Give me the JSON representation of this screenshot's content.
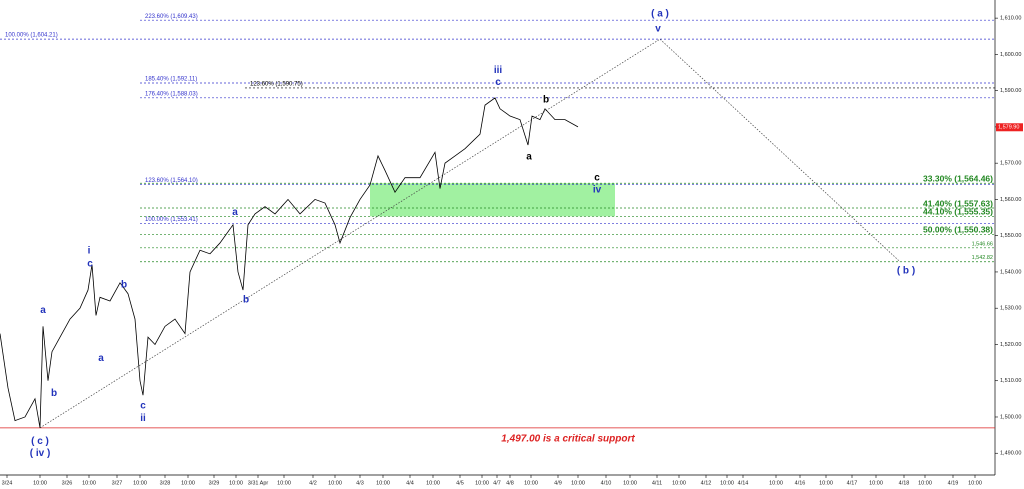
{
  "chart_data": {
    "type": "line",
    "xlim": [
      0,
      995
    ],
    "ylim": [
      1484,
      1615
    ],
    "yticks": [
      {
        "value": 1490,
        "label": "1,490.00"
      },
      {
        "value": 1500,
        "label": "1,500.00"
      },
      {
        "value": 1510,
        "label": "1,510.00"
      },
      {
        "value": 1520,
        "label": "1,520.00"
      },
      {
        "value": 1530,
        "label": "1,530.00"
      },
      {
        "value": 1540,
        "label": "1,540.00"
      },
      {
        "value": 1550,
        "label": "1,550.00"
      },
      {
        "value": 1560,
        "label": "1,560.00"
      },
      {
        "value": 1570,
        "label": "1,570.00"
      },
      {
        "value": 1580,
        "label": "1,580.00"
      },
      {
        "value": 1590,
        "label": "1,590.00"
      },
      {
        "value": 1600,
        "label": "1,600.00"
      },
      {
        "value": 1610,
        "label": "1,610.00"
      }
    ],
    "xticks": [
      {
        "value": 7,
        "label": "3/24"
      },
      {
        "value": 40,
        "label": "10:00"
      },
      {
        "value": 67,
        "label": "3/26"
      },
      {
        "value": 89,
        "label": "10:00"
      },
      {
        "value": 117,
        "label": "3/27"
      },
      {
        "value": 140,
        "label": "10:00"
      },
      {
        "value": 165,
        "label": "3/28"
      },
      {
        "value": 188,
        "label": "10:00"
      },
      {
        "value": 214,
        "label": "3/29"
      },
      {
        "value": 236,
        "label": "10:00"
      },
      {
        "value": 258,
        "label": "3/31 Apr"
      },
      {
        "value": 284,
        "label": "10:00"
      },
      {
        "value": 313,
        "label": "4/2"
      },
      {
        "value": 335,
        "label": "10:00"
      },
      {
        "value": 360,
        "label": "4/3"
      },
      {
        "value": 383,
        "label": "10:00"
      },
      {
        "value": 410,
        "label": "4/4"
      },
      {
        "value": 433,
        "label": "10:00"
      },
      {
        "value": 460,
        "label": "4/5"
      },
      {
        "value": 482,
        "label": "10:00"
      },
      {
        "value": 497,
        "label": "4/7"
      },
      {
        "value": 510,
        "label": "4/8"
      },
      {
        "value": 531,
        "label": "10:00"
      },
      {
        "value": 558,
        "label": "4/9"
      },
      {
        "value": 578,
        "label": "10:00"
      },
      {
        "value": 606,
        "label": "4/10"
      },
      {
        "value": 630,
        "label": "10:00"
      },
      {
        "value": 657,
        "label": "4/11"
      },
      {
        "value": 679,
        "label": "10:00"
      },
      {
        "value": 706,
        "label": "4/12"
      },
      {
        "value": 727,
        "label": "10:00"
      },
      {
        "value": 743,
        "label": "4/14"
      },
      {
        "value": 776,
        "label": "10:00"
      },
      {
        "value": 800,
        "label": "4/16"
      },
      {
        "value": 826,
        "label": "10:00"
      },
      {
        "value": 852,
        "label": "4/17"
      },
      {
        "value": 876,
        "label": "10:00"
      },
      {
        "value": 904,
        "label": "4/18"
      },
      {
        "value": 925,
        "label": "10:00"
      },
      {
        "value": 953,
        "label": "4/19"
      },
      {
        "value": 975,
        "label": "10:00"
      }
    ],
    "series": [
      {
        "name": "Price",
        "color": "#000000",
        "x": [
          0,
          8,
          15,
          25,
          35,
          40,
          43,
          48,
          52,
          60,
          70,
          80,
          88,
          92,
          96,
          100,
          110,
          120,
          128,
          135,
          140,
          143,
          148,
          155,
          165,
          175,
          185,
          190,
          200,
          210,
          220,
          233,
          238,
          243,
          248,
          255,
          265,
          275,
          288,
          300,
          315,
          325,
          335,
          340,
          350,
          360,
          370,
          378,
          385,
          395,
          405,
          420,
          435,
          440,
          445,
          455,
          465,
          480,
          485,
          495,
          500,
          510,
          520,
          528,
          532,
          540,
          545,
          555,
          565,
          578
        ],
        "values": [
          1523,
          1508,
          1499,
          1500,
          1505,
          1497,
          1525,
          1510,
          1518,
          1522,
          1527,
          1530,
          1535,
          1542,
          1528,
          1533,
          1532,
          1537,
          1534,
          1527,
          1510,
          1506,
          1522,
          1520,
          1525,
          1527,
          1523,
          1540,
          1546,
          1545,
          1548,
          1553,
          1540,
          1535,
          1553,
          1556,
          1558,
          1556,
          1560,
          1556,
          1560,
          1559,
          1553,
          1548,
          1555,
          1560,
          1564,
          1572,
          1568,
          1562,
          1566,
          1566,
          1573,
          1563,
          1570,
          1572,
          1574,
          1578,
          1586,
          1588,
          1585,
          1583,
          1582,
          1575,
          1583,
          1582,
          1585,
          1582,
          1582,
          1580
        ]
      }
    ],
    "last_price": {
      "value": 1579.9,
      "label": "1,579.90",
      "color": "#ee2222"
    },
    "fib_levels": [
      {
        "label": "223.60% (1,609.43)",
        "value": 1609.43,
        "x_start": 140,
        "color": "#3333cc"
      },
      {
        "label": "100.00% (1,604.21)",
        "value": 1604.21,
        "x_start": 0,
        "color": "#3333cc"
      },
      {
        "label": "185.40% (1,592.11)",
        "value": 1592.11,
        "x_start": 140,
        "color": "#3333cc"
      },
      {
        "label": "123.60% (1,590.75)",
        "value": 1590.75,
        "x_start": 245,
        "color": "#000000"
      },
      {
        "label": "176.40% (1,588.03)",
        "value": 1588.03,
        "x_start": 140,
        "color": "#3333cc"
      },
      {
        "label": "123.60% (1,564.10)",
        "value": 1564.1,
        "x_start": 140,
        "color": "#3333cc"
      },
      {
        "label": "100.00% (1,553.41)",
        "value": 1553.41,
        "x_start": 140,
        "color": "#3333cc"
      }
    ],
    "retracements": [
      {
        "label": "33.30% (1,564.46)",
        "value": 1564.46
      },
      {
        "label": "41.40% (1,557.63)",
        "value": 1557.63
      },
      {
        "label": "44.10% (1,555.35)",
        "value": 1555.35
      },
      {
        "label": "50.00% (1,550.38)",
        "value": 1550.38
      },
      {
        "label": "1,546.66",
        "value": 1546.66
      },
      {
        "label": "1,542.82",
        "value": 1542.82
      }
    ],
    "retracement_color": "#228822",
    "zone_color": "#90ee90",
    "zone_x": [
      370,
      615
    ],
    "support": {
      "value": 1497,
      "label": "1,497.00 is a critical support",
      "color": "#dd2222"
    },
    "projection": {
      "x": [
        40,
        660,
        900
      ],
      "values": [
        1497,
        1604.21,
        1542.82
      ]
    },
    "wave_labels": [
      {
        "text": "( a )",
        "x": 660,
        "y": 1611.2,
        "color": "#2233bb"
      },
      {
        "text": "v",
        "x": 658,
        "y": 1607,
        "color": "#2233bb"
      },
      {
        "text": "iii",
        "x": 498,
        "y": 1595.6,
        "color": "#2233bb"
      },
      {
        "text": "c",
        "x": 498,
        "y": 1592.3,
        "color": "#2233bb"
      },
      {
        "text": "b",
        "x": 546,
        "y": 1587.4,
        "color": "#000000"
      },
      {
        "text": "a",
        "x": 529,
        "y": 1571.7,
        "color": "#000000"
      },
      {
        "text": "c",
        "x": 597,
        "y": 1566,
        "color": "#000000"
      },
      {
        "text": "iv",
        "x": 597,
        "y": 1562.7,
        "color": "#2233bb"
      },
      {
        "text": "a",
        "x": 235,
        "y": 1556.5,
        "color": "#2233bb"
      },
      {
        "text": "b",
        "x": 246,
        "y": 1532.3,
        "color": "#2233bb"
      },
      {
        "text": "i",
        "x": 89,
        "y": 1545.8,
        "color": "#2233bb"
      },
      {
        "text": "c",
        "x": 90,
        "y": 1542.2,
        "color": "#2233bb"
      },
      {
        "text": "b",
        "x": 124,
        "y": 1536.4,
        "color": "#2233bb"
      },
      {
        "text": "a",
        "x": 101,
        "y": 1516.1,
        "color": "#2233bb"
      },
      {
        "text": "c",
        "x": 143,
        "y": 1503.1,
        "color": "#2233bb"
      },
      {
        "text": "ii",
        "x": 143,
        "y": 1499.6,
        "color": "#2233bb"
      },
      {
        "text": "a",
        "x": 43,
        "y": 1529.4,
        "color": "#2233bb"
      },
      {
        "text": "b",
        "x": 54,
        "y": 1506.5,
        "color": "#2233bb"
      },
      {
        "text": "( c )",
        "x": 40,
        "y": 1493.3,
        "color": "#2233bb"
      },
      {
        "text": "( iv )",
        "x": 40,
        "y": 1490,
        "color": "#2233bb"
      },
      {
        "text": "( b )",
        "x": 906,
        "y": 1540.3,
        "color": "#2233bb"
      }
    ]
  }
}
